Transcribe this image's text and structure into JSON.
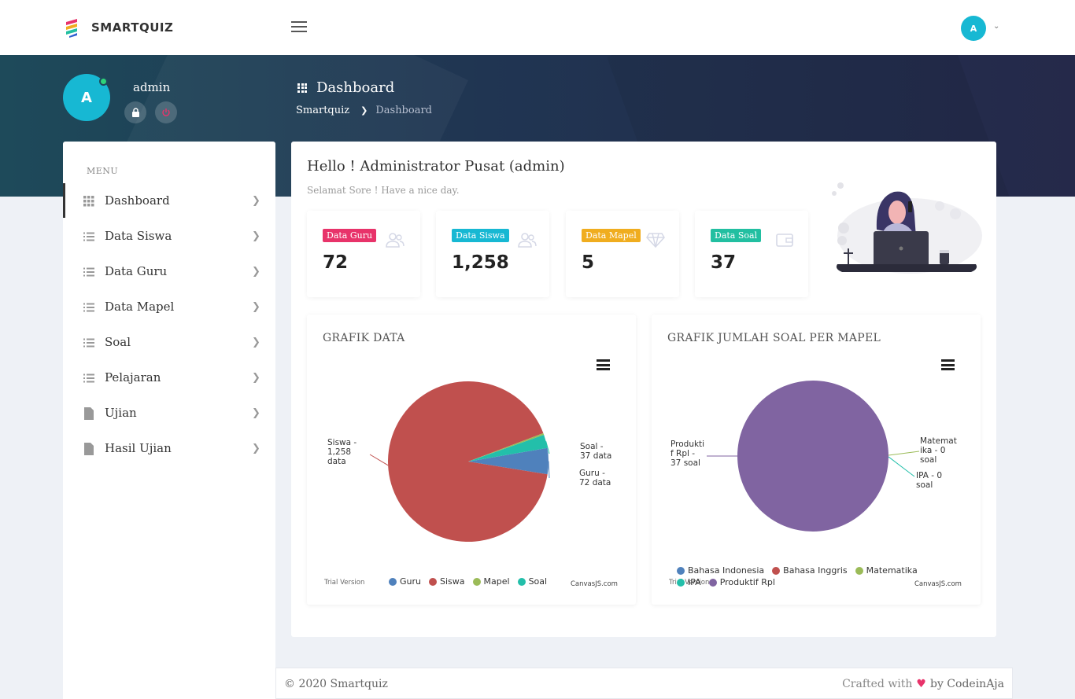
{
  "app": {
    "logo_text": "SMARTQUIZ",
    "user_initial": "A"
  },
  "profile": {
    "initial": "A",
    "name": "admin"
  },
  "header": {
    "page_title": "Dashboard",
    "breadcrumb_root": "Smartquiz",
    "breadcrumb_current": "Dashboard"
  },
  "sidebar": {
    "menu_title": "MENU",
    "items": [
      {
        "label": "Dashboard",
        "icon": "grid-icon"
      },
      {
        "label": "Data Siswa",
        "icon": "list-icon"
      },
      {
        "label": "Data Guru",
        "icon": "list-icon"
      },
      {
        "label": "Data Mapel",
        "icon": "list-icon"
      },
      {
        "label": "Soal",
        "icon": "list-icon"
      },
      {
        "label": "Pelajaran",
        "icon": "list-icon"
      },
      {
        "label": "Ujian",
        "icon": "file-icon"
      },
      {
        "label": "Hasil Ujian",
        "icon": "file-icon"
      }
    ]
  },
  "main": {
    "hello": "Hello ! Administrator Pusat (admin)",
    "greeting": "Selamat Sore ! Have a nice day.",
    "stats": [
      {
        "label": "Data Guru",
        "value": "72",
        "color": "#e8336a",
        "icon": "users-icon"
      },
      {
        "label": "Data Siswa",
        "value": "1,258",
        "color": "#17b8d3",
        "icon": "users-icon"
      },
      {
        "label": "Data Mapel",
        "value": "5",
        "color": "#f0ad1f",
        "icon": "diamond-icon"
      },
      {
        "label": "Data Soal",
        "value": "37",
        "color": "#22bfa1",
        "icon": "wallet-icon"
      }
    ]
  },
  "charts": {
    "trial_text": "Trial Version",
    "credit_text": "CanvasJS.com"
  },
  "chart_data": [
    {
      "type": "pie",
      "title": "GRAFIK DATA",
      "categories": [
        "Guru",
        "Siswa",
        "Mapel",
        "Soal"
      ],
      "values": [
        72,
        1258,
        5,
        37
      ],
      "colors": [
        "#4f81bc",
        "#c0504e",
        "#9bbb58",
        "#23bfaa"
      ],
      "labels": [
        {
          "lines": [
            "Guru -",
            "72 data"
          ]
        },
        {
          "lines": [
            "Siswa -",
            "1,258",
            "data"
          ]
        },
        null,
        {
          "lines": [
            "Soal -",
            "37 data"
          ]
        }
      ],
      "legend_placement": "bottom"
    },
    {
      "type": "pie",
      "title": "GRAFIK JUMLAH SOAL PER MAPEL",
      "categories": [
        "Bahasa Indonesia",
        "Bahasa Inggris",
        "Matematika",
        "IPA",
        "Produktif Rpl"
      ],
      "values": [
        0,
        0,
        0,
        0,
        37
      ],
      "colors": [
        "#4f81bc",
        "#c0504e",
        "#9bbb58",
        "#23bfaa",
        "#8064a1"
      ],
      "labels": [
        null,
        null,
        {
          "lines": [
            "Matemat",
            "ika - 0",
            "soal"
          ]
        },
        {
          "lines": [
            "IPA - 0",
            "soal"
          ]
        },
        {
          "lines": [
            "Produkti",
            "f Rpl -",
            "37 soal"
          ]
        }
      ],
      "legend_placement": "bottom"
    }
  ],
  "footer": {
    "copyright": "© 2020 Smartquiz",
    "crafted": "Crafted with",
    "heart": "♥",
    "by": "by CodeinAja"
  }
}
